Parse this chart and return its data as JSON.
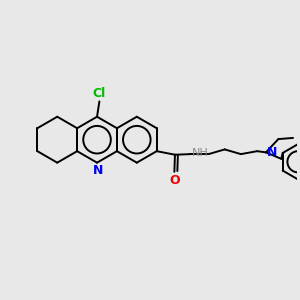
{
  "background_color": "#e8e8e8",
  "bond_color": "#000000",
  "N_color": "#0000ee",
  "O_color": "#ee0000",
  "Cl_color": "#00bb00",
  "figsize": [
    3.0,
    3.0
  ],
  "dpi": 100,
  "xlim": [
    0,
    10
  ],
  "ylim": [
    0,
    10
  ]
}
